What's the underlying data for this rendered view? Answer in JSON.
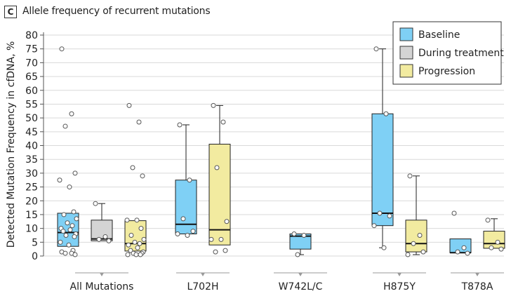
{
  "panel": {
    "letter": "C",
    "title": "Allele frequency of recurrent mutations"
  },
  "colors": {
    "Baseline": "#7fd0f5",
    "During treatment": "#d4d4d4",
    "Progression": "#f2eba0",
    "grid": "#d9d9d9",
    "axis": "#555555",
    "arrow": "#9a9a9a"
  },
  "chart_data": {
    "type": "box",
    "title": "Allele frequency of recurrent mutations",
    "xlabel": "",
    "ylabel": "Detected Mutation Frequency in cfDNA, %",
    "ylim": [
      0,
      80
    ],
    "yticks": [
      0,
      5,
      10,
      15,
      20,
      25,
      30,
      35,
      40,
      45,
      50,
      55,
      60,
      65,
      70,
      75,
      80
    ],
    "grid": true,
    "legend_position": "top-right",
    "legend": [
      "Baseline",
      "During treatment",
      "Progression"
    ],
    "categories": [
      "All Mutations",
      "L702H",
      "W742L/C",
      "H875Y",
      "T878A"
    ],
    "groups": [
      {
        "category": "All Mutations",
        "boxes": [
          {
            "series": "Baseline",
            "q1": 3.5,
            "median": 8.5,
            "q3": 15.5,
            "whisker_low": null,
            "whisker_high": null,
            "points": [
              75,
              51.5,
              47,
              30,
              27.5,
              25,
              16,
              15,
              13.5,
              12,
              11,
              10,
              9.5,
              9,
              8,
              7.5,
              7,
              5,
              4,
              2,
              1.5,
              1,
              1,
              0.5
            ]
          },
          {
            "series": "During treatment",
            "q1": 5.5,
            "median": 6.2,
            "q3": 13,
            "whisker_low": null,
            "whisker_high": 19,
            "points": [
              19,
              7,
              6,
              5.5
            ]
          },
          {
            "series": "Progression",
            "q1": 1.8,
            "median": 4.5,
            "q3": 12.8,
            "whisker_low": null,
            "whisker_high": null,
            "points": [
              54.5,
              48.5,
              32,
              29,
              13,
              13,
              10,
              7.5,
              6,
              5,
              4.5,
              4,
              3,
              2,
              1.5,
              1,
              1,
              0.5,
              0.5,
              0.5
            ]
          }
        ]
      },
      {
        "category": "L702H",
        "boxes": [
          {
            "series": "Baseline",
            "q1": 8,
            "median": 11.5,
            "q3": 27.5,
            "whisker_low": null,
            "whisker_high": 47.5,
            "points": [
              47.5,
              27.5,
              13.5,
              9,
              8,
              7.5
            ]
          },
          {
            "series": "Progression",
            "q1": 4,
            "median": 9.5,
            "q3": 40.5,
            "whisker_low": null,
            "whisker_high": 54.5,
            "points": [
              54.5,
              48.5,
              32,
              12.5,
              6,
              6,
              2,
              1.5
            ]
          }
        ]
      },
      {
        "category": "W742L/C",
        "boxes": [
          {
            "series": "Baseline",
            "q1": 2.5,
            "median": 7.2,
            "q3": 8,
            "whisker_low": 0.5,
            "whisker_high": null,
            "points": [
              8,
              7.5,
              0.5
            ]
          }
        ]
      },
      {
        "category": "H875Y",
        "boxes": [
          {
            "series": "Baseline",
            "q1": 11,
            "median": 15.5,
            "q3": 51.5,
            "whisker_low": 3,
            "whisker_high": 75,
            "points": [
              75,
              51.5,
              15.5,
              14.5,
              11,
              3
            ]
          },
          {
            "series": "Progression",
            "q1": 1.5,
            "median": 4.5,
            "q3": 13,
            "whisker_low": 0.5,
            "whisker_high": 29,
            "points": [
              29,
              7.5,
              4.5,
              1.5,
              0.5
            ]
          }
        ]
      },
      {
        "category": "T878A",
        "boxes": [
          {
            "series": "Baseline",
            "q1": 1.2,
            "median": 1.2,
            "q3": 6.2,
            "whisker_low": null,
            "whisker_high": null,
            "points": [
              15.5,
              3,
              1.5,
              1
            ]
          },
          {
            "series": "Progression",
            "q1": 2.8,
            "median": 4.5,
            "q3": 9,
            "whisker_low": null,
            "whisker_high": 13.5,
            "points": [
              13,
              5,
              3,
              2.5
            ]
          }
        ]
      }
    ]
  }
}
